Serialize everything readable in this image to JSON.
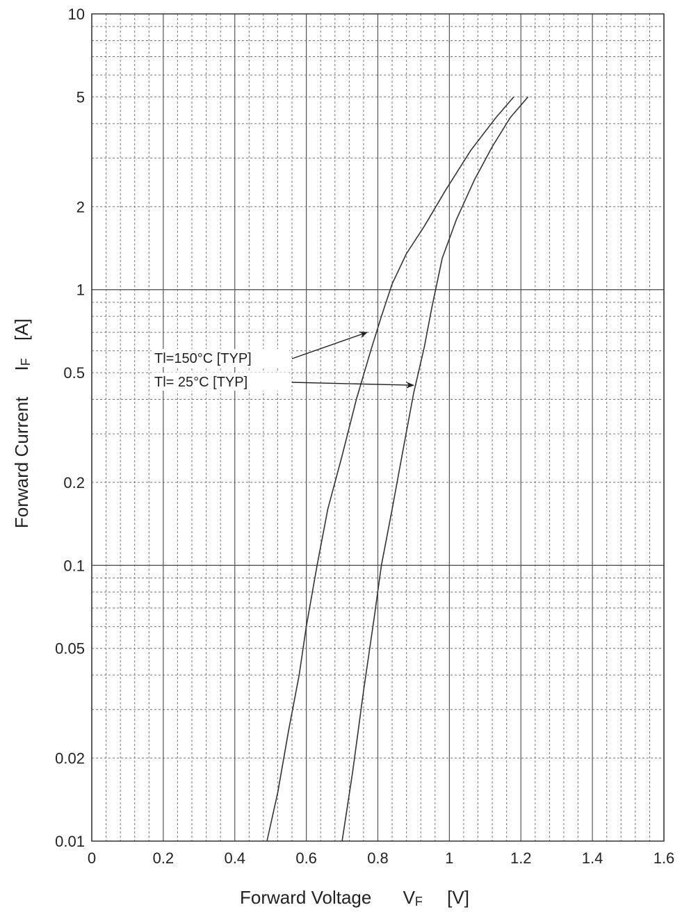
{
  "chart_data": {
    "type": "line",
    "title": "",
    "x_axis": {
      "label_main": "Forward Voltage",
      "symbol": "V",
      "symbol_sub": "F",
      "unit": "[V]",
      "range": [
        0,
        1.6
      ],
      "ticks": [
        0,
        0.2,
        0.4,
        0.6,
        0.8,
        1,
        1.2,
        1.4,
        1.6
      ],
      "tick_labels": [
        "0",
        "0.2",
        "0.4",
        "0.6",
        "0.8",
        "1",
        "1.2",
        "1.4",
        "1.6"
      ],
      "minor_step": 0.04
    },
    "y_axis": {
      "label_main": "Forward Current",
      "symbol": "I",
      "symbol_sub": "F",
      "unit": "[A]",
      "scale": "log",
      "range": [
        0.01,
        10
      ],
      "ticks": [
        0.01,
        0.02,
        0.05,
        0.1,
        0.2,
        0.5,
        1,
        2,
        5,
        10
      ],
      "tick_labels": [
        "0.01",
        "0.02",
        "0.05",
        "0.1",
        "0.2",
        "0.5",
        "1",
        "2",
        "5",
        "10"
      ]
    },
    "grid": true,
    "series": [
      {
        "name": "Tl=150°C [TYP]",
        "x": [
          0.49,
          0.52,
          0.55,
          0.58,
          0.6,
          0.63,
          0.66,
          0.7,
          0.74,
          0.78,
          0.81,
          0.84,
          0.88,
          0.93,
          0.99,
          1.06,
          1.13,
          1.18
        ],
        "y": [
          0.01,
          0.015,
          0.025,
          0.04,
          0.06,
          0.1,
          0.16,
          0.25,
          0.4,
          0.6,
          0.8,
          1.05,
          1.35,
          1.7,
          2.3,
          3.2,
          4.2,
          5.0
        ]
      },
      {
        "name": "Tl= 25°C [TYP]",
        "x": [
          0.7,
          0.73,
          0.76,
          0.79,
          0.81,
          0.84,
          0.87,
          0.9,
          0.93,
          0.95,
          0.98,
          1.02,
          1.07,
          1.12,
          1.17,
          1.22
        ],
        "y": [
          0.01,
          0.018,
          0.035,
          0.065,
          0.1,
          0.16,
          0.26,
          0.42,
          0.62,
          0.85,
          1.3,
          1.8,
          2.5,
          3.3,
          4.2,
          5.0
        ]
      }
    ],
    "annotations": [
      {
        "text": "Tl=150°C [TYP]",
        "arrow_to": {
          "x": 0.77,
          "y": 0.7
        }
      },
      {
        "text": "Tl= 25°C [TYP]",
        "arrow_to": {
          "x": 0.9,
          "y": 0.45
        }
      }
    ],
    "colors": {
      "line": "#333333",
      "grid_major": "#555555",
      "grid_minor": "#777777",
      "background": "#ffffff"
    }
  }
}
